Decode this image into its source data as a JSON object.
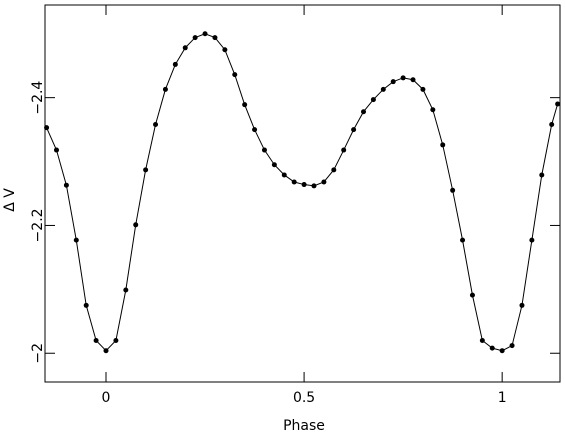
{
  "chart_data": {
    "type": "scatter",
    "x_label": "Phase",
    "y_label": "Δ V",
    "x": [
      -0.15,
      -0.125,
      -0.1,
      -0.075,
      -0.05,
      -0.025,
      0,
      0.025,
      0.05,
      0.075,
      0.1,
      0.125,
      0.15,
      0.175,
      0.2,
      0.225,
      0.25,
      0.275,
      0.3,
      0.325,
      0.35,
      0.375,
      0.4,
      0.425,
      0.45,
      0.475,
      0.5,
      0.525,
      0.55,
      0.575,
      0.6,
      0.625,
      0.65,
      0.675,
      0.7,
      0.725,
      0.75,
      0.775,
      0.8,
      0.825,
      0.85,
      0.875,
      0.9,
      0.925,
      0.95,
      0.975,
      1,
      1.025,
      1.05,
      1.075,
      1.1,
      1.125,
      1.14
    ],
    "series": [
      {
        "color": "#000000",
        "line": true,
        "markers": true,
        "values": [
          -2.353,
          -2.318,
          -2.263,
          -2.177,
          -2.075,
          -2.02,
          -2.004,
          -2.02,
          -2.099,
          -2.201,
          -2.287,
          -2.358,
          -2.413,
          -2.452,
          -2.478,
          -2.494,
          -2.5,
          -2.494,
          -2.475,
          -2.436,
          -2.389,
          -2.35,
          -2.318,
          -2.295,
          -2.279,
          -2.268,
          -2.264,
          -2.262,
          -2.268,
          -2.287,
          -2.318,
          -2.35,
          -2.378,
          -2.397,
          -2.413,
          -2.425,
          -2.431,
          -2.428,
          -2.413,
          -2.381,
          -2.326,
          -2.255,
          -2.177,
          -2.091,
          -2.02,
          -2.008,
          -2.004,
          -2.012,
          -2.075,
          -2.177,
          -2.279,
          -2.358,
          -2.39
        ]
      }
    ],
    "xlim": [
      -0.154,
      1.146
    ],
    "ylim": [
      -1.955,
      -2.545
    ],
    "xticks": [
      0,
      0.5,
      1
    ],
    "yticks": [
      {
        "value": -2,
        "label": "−2"
      },
      {
        "value": -2.2,
        "label": "−2.2"
      },
      {
        "value": -2.4,
        "label": "−2.4"
      }
    ]
  }
}
